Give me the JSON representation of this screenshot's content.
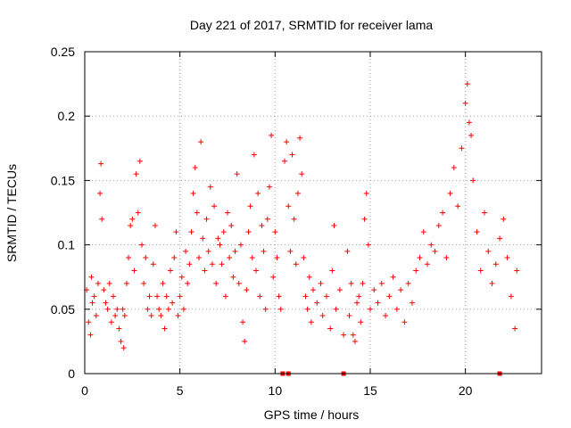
{
  "chart_data": {
    "type": "scatter",
    "title": "Day 221 of 2017, SRMTID for receiver lama",
    "xlabel": "GPS time / hours",
    "ylabel": "SRMTID / TECUs",
    "xlim": [
      0,
      24
    ],
    "ylim": [
      0,
      0.25
    ],
    "x_ticks": [
      0,
      5,
      10,
      15,
      20
    ],
    "x_tick_labels": [
      "0",
      "5",
      "10",
      "15",
      "20"
    ],
    "y_ticks": [
      0,
      0.05,
      0.1,
      0.15,
      0.2,
      0.25
    ],
    "y_tick_labels": [
      "0",
      "0.05",
      "0.1",
      "0.15",
      "0.2",
      "0.25"
    ],
    "grid": true,
    "marker": "+",
    "color": "#ff0000",
    "series": [
      {
        "name": "SRMTID",
        "points": [
          [
            0.1,
            0.065
          ],
          [
            0.2,
            0.04
          ],
          [
            0.3,
            0.03
          ],
          [
            0.35,
            0.075
          ],
          [
            0.4,
            0.055
          ],
          [
            0.5,
            0.06
          ],
          [
            0.6,
            0.045
          ],
          [
            0.7,
            0.07
          ],
          [
            0.8,
            0.14
          ],
          [
            0.85,
            0.163
          ],
          [
            0.9,
            0.12
          ],
          [
            1.0,
            0.065
          ],
          [
            1.1,
            0.055
          ],
          [
            1.2,
            0.05
          ],
          [
            1.3,
            0.07
          ],
          [
            1.4,
            0.04
          ],
          [
            1.5,
            0.06
          ],
          [
            1.6,
            0.045
          ],
          [
            1.7,
            0.05
          ],
          [
            1.8,
            0.035
          ],
          [
            1.9,
            0.025
          ],
          [
            2.0,
            0.05
          ],
          [
            2.05,
            0.02
          ],
          [
            2.1,
            0.045
          ],
          [
            2.2,
            0.07
          ],
          [
            2.3,
            0.09
          ],
          [
            2.4,
            0.115
          ],
          [
            2.5,
            0.12
          ],
          [
            2.6,
            0.08
          ],
          [
            2.7,
            0.155
          ],
          [
            2.8,
            0.125
          ],
          [
            2.9,
            0.165
          ],
          [
            3.0,
            0.1
          ],
          [
            3.1,
            0.07
          ],
          [
            3.2,
            0.09
          ],
          [
            3.3,
            0.05
          ],
          [
            3.4,
            0.06
          ],
          [
            3.5,
            0.045
          ],
          [
            3.6,
            0.085
          ],
          [
            3.7,
            0.115
          ],
          [
            3.8,
            0.06
          ],
          [
            3.9,
            0.05
          ],
          [
            4.0,
            0.045
          ],
          [
            4.1,
            0.07
          ],
          [
            4.2,
            0.035
          ],
          [
            4.3,
            0.06
          ],
          [
            4.4,
            0.05
          ],
          [
            4.5,
            0.08
          ],
          [
            4.6,
            0.055
          ],
          [
            4.7,
            0.09
          ],
          [
            4.8,
            0.11
          ],
          [
            4.9,
            0.045
          ],
          [
            5.0,
            0.06
          ],
          [
            5.1,
            0.075
          ],
          [
            5.2,
            0.05
          ],
          [
            5.3,
            0.095
          ],
          [
            5.4,
            0.07
          ],
          [
            5.5,
            0.085
          ],
          [
            5.6,
            0.11
          ],
          [
            5.7,
            0.14
          ],
          [
            5.8,
            0.16
          ],
          [
            5.9,
            0.125
          ],
          [
            6.0,
            0.09
          ],
          [
            6.1,
            0.18
          ],
          [
            6.2,
            0.105
          ],
          [
            6.3,
            0.08
          ],
          [
            6.4,
            0.12
          ],
          [
            6.5,
            0.095
          ],
          [
            6.6,
            0.145
          ],
          [
            6.7,
            0.085
          ],
          [
            6.8,
            0.13
          ],
          [
            6.9,
            0.07
          ],
          [
            7.0,
            0.105
          ],
          [
            7.1,
            0.1
          ],
          [
            7.2,
            0.085
          ],
          [
            7.3,
            0.11
          ],
          [
            7.4,
            0.06
          ],
          [
            7.5,
            0.125
          ],
          [
            7.6,
            0.09
          ],
          [
            7.7,
            0.115
          ],
          [
            7.8,
            0.075
          ],
          [
            7.9,
            0.095
          ],
          [
            8.0,
            0.155
          ],
          [
            8.1,
            0.07
          ],
          [
            8.2,
            0.1
          ],
          [
            8.3,
            0.04
          ],
          [
            8.4,
            0.025
          ],
          [
            8.5,
            0.065
          ],
          [
            8.6,
            0.11
          ],
          [
            8.7,
            0.13
          ],
          [
            8.8,
            0.09
          ],
          [
            8.9,
            0.17
          ],
          [
            9.0,
            0.08
          ],
          [
            9.1,
            0.14
          ],
          [
            9.2,
            0.06
          ],
          [
            9.3,
            0.115
          ],
          [
            9.4,
            0.095
          ],
          [
            9.5,
            0.05
          ],
          [
            9.6,
            0.12
          ],
          [
            9.7,
            0.145
          ],
          [
            9.8,
            0.185
          ],
          [
            9.9,
            0.075
          ],
          [
            10.0,
            0.11
          ],
          [
            10.1,
            0.09
          ],
          [
            10.2,
            0.06
          ],
          [
            10.3,
            0.05
          ],
          [
            10.5,
            0.165
          ],
          [
            10.6,
            0.18
          ],
          [
            10.7,
            0.13
          ],
          [
            10.8,
            0.095
          ],
          [
            10.9,
            0.17
          ],
          [
            11.0,
            0.12
          ],
          [
            11.1,
            0.085
          ],
          [
            11.2,
            0.14
          ],
          [
            11.3,
            0.183
          ],
          [
            11.4,
            0.155
          ],
          [
            11.5,
            0.09
          ],
          [
            11.6,
            0.06
          ],
          [
            11.7,
            0.05
          ],
          [
            11.8,
            0.075
          ],
          [
            11.9,
            0.04
          ],
          [
            12.0,
            0.065
          ],
          [
            12.2,
            0.055
          ],
          [
            12.4,
            0.07
          ],
          [
            12.5,
            0.045
          ],
          [
            12.7,
            0.06
          ],
          [
            12.9,
            0.035
          ],
          [
            13.0,
            0.08
          ],
          [
            13.1,
            0.115
          ],
          [
            13.2,
            0.05
          ],
          [
            13.4,
            0.065
          ],
          [
            13.6,
            0.03
          ],
          [
            13.8,
            0.095
          ],
          [
            13.9,
            0.045
          ],
          [
            14.0,
            0.07
          ],
          [
            14.1,
            0.03
          ],
          [
            14.2,
            0.025
          ],
          [
            14.3,
            0.055
          ],
          [
            14.4,
            0.06
          ],
          [
            14.5,
            0.04
          ],
          [
            14.6,
            0.07
          ],
          [
            14.7,
            0.12
          ],
          [
            14.8,
            0.14
          ],
          [
            14.9,
            0.1
          ],
          [
            15.0,
            0.05
          ],
          [
            15.2,
            0.065
          ],
          [
            15.4,
            0.055
          ],
          [
            15.6,
            0.07
          ],
          [
            15.8,
            0.045
          ],
          [
            16.0,
            0.06
          ],
          [
            16.2,
            0.075
          ],
          [
            16.4,
            0.05
          ],
          [
            16.6,
            0.065
          ],
          [
            16.8,
            0.04
          ],
          [
            17.0,
            0.07
          ],
          [
            17.2,
            0.055
          ],
          [
            17.4,
            0.08
          ],
          [
            17.6,
            0.09
          ],
          [
            17.8,
            0.11
          ],
          [
            18.0,
            0.085
          ],
          [
            18.2,
            0.1
          ],
          [
            18.4,
            0.095
          ],
          [
            18.6,
            0.115
          ],
          [
            18.8,
            0.125
          ],
          [
            19.0,
            0.09
          ],
          [
            19.2,
            0.14
          ],
          [
            19.4,
            0.16
          ],
          [
            19.6,
            0.13
          ],
          [
            19.8,
            0.175
          ],
          [
            20.0,
            0.21
          ],
          [
            20.1,
            0.225
          ],
          [
            20.2,
            0.195
          ],
          [
            20.3,
            0.185
          ],
          [
            20.4,
            0.15
          ],
          [
            20.6,
            0.11
          ],
          [
            20.8,
            0.08
          ],
          [
            21.0,
            0.125
          ],
          [
            21.2,
            0.095
          ],
          [
            21.4,
            0.07
          ],
          [
            21.6,
            0.085
          ],
          [
            21.8,
            0.105
          ],
          [
            22.0,
            0.12
          ],
          [
            22.2,
            0.09
          ],
          [
            22.4,
            0.06
          ],
          [
            22.6,
            0.035
          ],
          [
            22.7,
            0.08
          ]
        ]
      }
    ],
    "zero_markers_x": [
      10.4,
      10.7,
      13.6,
      21.8
    ]
  }
}
